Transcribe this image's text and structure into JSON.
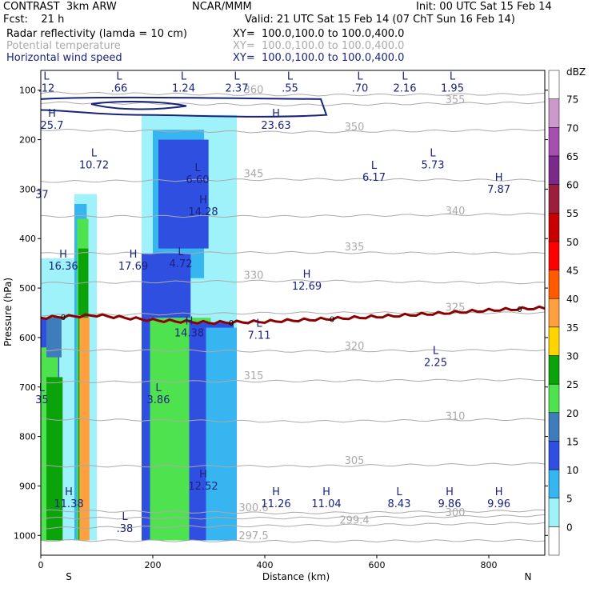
{
  "header": {
    "line1_left": "CONTRAST  3km ARW",
    "line1_center": "NCAR/MMM",
    "line1_right": "Init: 00 UTC Sat 15 Feb 14",
    "line2_left": "Fcst:    21 h",
    "line2_right": "Valid: 21 UTC Sat 15 Feb 14 (07 ChT Sun 16 Feb 14)",
    "fields": [
      {
        "name": "Radar reflectivity (lamda = 10 cm)",
        "xy": "XY=  100.0,100.0 to 100.0,400.0",
        "color": "#000000"
      },
      {
        "name": "Potential temperature",
        "xy": "XY=  100.0,100.0 to 100.0,400.0",
        "color": "#aaaaaa"
      },
      {
        "name": "Horizontal wind speed",
        "xy": "XY=  100.0,100.0 to 100.0,400.0",
        "color": "#1a237e"
      }
    ]
  },
  "chart_data": {
    "type": "heatmap",
    "xlabel": "Distance (km)",
    "ylabel": "Pressure (hPa)",
    "xlim": [
      0,
      900
    ],
    "ylim": [
      1040,
      60
    ],
    "x_ticks": [
      0,
      200,
      400,
      600,
      800
    ],
    "y_ticks": [
      100,
      200,
      300,
      400,
      500,
      600,
      700,
      800,
      900,
      1000
    ],
    "x_end_labels": {
      "left": "S",
      "right": "N"
    },
    "colorbar": {
      "unit": "dBZ",
      "levels": [
        0,
        5,
        10,
        15,
        20,
        25,
        30,
        35,
        40,
        45,
        50,
        55,
        60,
        65,
        70,
        75
      ],
      "colors": [
        "#ffffff",
        "#9ff2fa",
        "#36b5f0",
        "#2f4fe0",
        "#3e7cbc",
        "#4ee24e",
        "#0aa30a",
        "#ffd400",
        "#ffa040",
        "#ff5a00",
        "#ff0000",
        "#c80000",
        "#9b1f3c",
        "#7a2a8a",
        "#a64fb0",
        "#cc99cc"
      ]
    },
    "reflectivity_columns": [
      {
        "x0": 0,
        "x1": 60,
        "ptop": 440,
        "pbot": 1010,
        "layers": [
          [
            0,
            560,
            1010,
            3
          ],
          [
            0,
            620,
            1010,
            5
          ],
          [
            15,
            680,
            1010,
            6
          ],
          [
            15,
            560,
            640,
            4
          ]
        ]
      },
      {
        "x0": 60,
        "x1": 100,
        "ptop": 310,
        "pbot": 1010,
        "layers": [
          [
            65,
            330,
            1010,
            2
          ],
          [
            70,
            360,
            1010,
            5
          ],
          [
            72,
            420,
            1010,
            6
          ],
          [
            74,
            560,
            1010,
            8
          ]
        ]
      },
      {
        "x0": 180,
        "x1": 350,
        "ptop": 150,
        "pbot": 1010,
        "layers": [
          [
            190,
            150,
            520,
            1
          ],
          [
            205,
            180,
            480,
            2
          ],
          [
            215,
            200,
            420,
            3
          ],
          [
            185,
            430,
            1010,
            3
          ],
          [
            200,
            560,
            1010,
            5
          ],
          [
            225,
            560,
            1010,
            5
          ],
          [
            255,
            570,
            1010,
            5
          ],
          [
            270,
            570,
            1010,
            3
          ],
          [
            300,
            580,
            1010,
            2
          ]
        ]
      }
    ],
    "freezing_level": {
      "label": "0",
      "x": [
        0,
        100,
        200,
        300,
        400,
        500,
        600,
        700,
        800,
        900
      ],
      "p": [
        560,
        555,
        565,
        570,
        568,
        563,
        558,
        552,
        545,
        540
      ]
    },
    "theta_contours": [
      {
        "label": "297.5",
        "p": [
          1010,
          1012,
          1010
        ]
      },
      {
        "label": "299.4",
        "p": [
          985,
          980,
          975
        ]
      },
      {
        "label": "300",
        "p": [
          965,
          965,
          960
        ]
      },
      {
        "label": "300.6",
        "p": [
          950,
          955,
          950
        ]
      },
      {
        "label": "305",
        "p": [
          860,
          860,
          855
        ]
      },
      {
        "label": "310",
        "p": [
          765,
          770,
          765
        ]
      },
      {
        "label": "315",
        "p": [
          690,
          688,
          685
        ]
      },
      {
        "label": "320",
        "p": [
          625,
          628,
          625
        ]
      },
      {
        "label": "325",
        "p": [
          555,
          550,
          550
        ]
      },
      {
        "label": "330",
        "p": [
          490,
          485,
          490
        ]
      },
      {
        "label": "335",
        "p": [
          430,
          428,
          430
        ]
      },
      {
        "label": "340",
        "p": [
          355,
          355,
          350
        ]
      },
      {
        "label": "345",
        "p": [
          285,
          280,
          282
        ]
      },
      {
        "label": "350",
        "p": [
          180,
          185,
          180
        ]
      },
      {
        "label": "355",
        "p": [
          125,
          130,
          125
        ]
      },
      {
        "label": "360",
        "p": [
          105,
          110,
          108
        ]
      }
    ],
    "wind_extrema": [
      {
        "t": "L",
        "v": ".12",
        "x": 10,
        "p": 85
      },
      {
        "t": "L",
        "v": ".66",
        "x": 140,
        "p": 85
      },
      {
        "t": "L",
        "v": "1.24",
        "x": 255,
        "p": 85
      },
      {
        "t": "L",
        "v": "2.37",
        "x": 350,
        "p": 85
      },
      {
        "t": "L",
        "v": ".55",
        "x": 445,
        "p": 85
      },
      {
        "t": "L",
        "v": ".70",
        "x": 570,
        "p": 85
      },
      {
        "t": "L",
        "v": "2.16",
        "x": 650,
        "p": 85
      },
      {
        "t": "L",
        "v": "1.95",
        "x": 735,
        "p": 85
      },
      {
        "t": "H",
        "v": "25.7",
        "x": 20,
        "p": 160
      },
      {
        "t": "H",
        "v": "23.63",
        "x": 420,
        "p": 160
      },
      {
        "t": "L",
        "v": "10.72",
        "x": 95,
        "p": 240
      },
      {
        "t": "L",
        "v": "6.60",
        "x": 280,
        "p": 270
      },
      {
        "t": "L",
        "v": "6.17",
        "x": 595,
        "p": 265
      },
      {
        "t": "L",
        "v": "5.73",
        "x": 700,
        "p": 240
      },
      {
        "t": "H",
        "v": "7.87",
        "x": 818,
        "p": 290
      },
      {
        "t": "",
        "v": "37",
        "x": 2,
        "p": 300
      },
      {
        "t": "H",
        "v": "14.28",
        "x": 290,
        "p": 335
      },
      {
        "t": "H",
        "v": "16.36",
        "x": 40,
        "p": 445
      },
      {
        "t": "H",
        "v": "17.69",
        "x": 165,
        "p": 445
      },
      {
        "t": "L",
        "v": "4.72",
        "x": 250,
        "p": 440
      },
      {
        "t": "H",
        "v": "12.69",
        "x": 475,
        "p": 485
      },
      {
        "t": "H",
        "v": "14.38",
        "x": 265,
        "p": 580
      },
      {
        "t": "L",
        "v": "7.11",
        "x": 390,
        "p": 585
      },
      {
        "t": "L",
        "v": "2.25",
        "x": 705,
        "p": 640
      },
      {
        "t": "L",
        "v": "35",
        "x": 2,
        "p": 715
      },
      {
        "t": "L",
        "v": "3.86",
        "x": 210,
        "p": 715
      },
      {
        "t": "H",
        "v": "12.52",
        "x": 290,
        "p": 890
      },
      {
        "t": "H",
        "v": "11.38",
        "x": 50,
        "p": 925
      },
      {
        "t": "H",
        "v": "11.26",
        "x": 420,
        "p": 925
      },
      {
        "t": "H",
        "v": "11.04",
        "x": 510,
        "p": 925
      },
      {
        "t": "L",
        "v": "8.43",
        "x": 640,
        "p": 925
      },
      {
        "t": "H",
        "v": "9.86",
        "x": 730,
        "p": 925
      },
      {
        "t": "H",
        "v": "9.96",
        "x": 818,
        "p": 925
      },
      {
        "t": "L",
        "v": ".38",
        "x": 150,
        "p": 975
      }
    ]
  }
}
